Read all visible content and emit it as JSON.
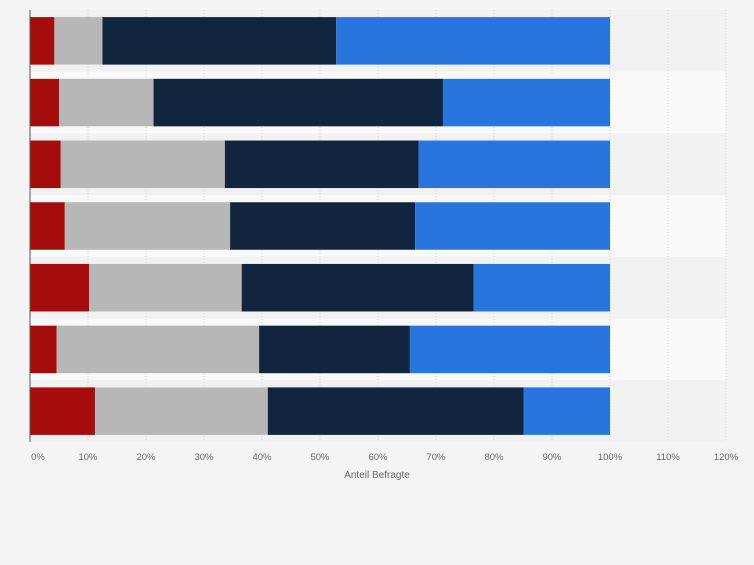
{
  "chart_data": {
    "type": "bar",
    "orientation": "horizontal",
    "stacked": true,
    "xlabel": "Anteil Befragte",
    "ylabel": "",
    "xlim": [
      0,
      120
    ],
    "xticks": [
      0,
      10,
      20,
      30,
      40,
      50,
      60,
      70,
      80,
      90,
      100,
      110,
      120
    ],
    "tick_suffix": "%",
    "categories": [
      "",
      "",
      "",
      "",
      "",
      "",
      ""
    ],
    "series": [
      {
        "color": "#a50c0c",
        "values": [
          4.2,
          5.0,
          5.3,
          6.0,
          10.2,
          4.6,
          11.2
        ]
      },
      {
        "color": "#b7b7b7",
        "values": [
          8.3,
          16.3,
          28.3,
          28.5,
          26.3,
          34.9,
          29.8
        ]
      },
      {
        "color": "#11263e",
        "values": [
          40.3,
          49.9,
          33.4,
          31.9,
          40.0,
          26.0,
          44.1
        ]
      },
      {
        "color": "#2876dd",
        "values": [
          47.2,
          28.8,
          33.0,
          33.6,
          23.5,
          34.5,
          14.9
        ]
      }
    ],
    "grid": true,
    "legend": "none"
  }
}
